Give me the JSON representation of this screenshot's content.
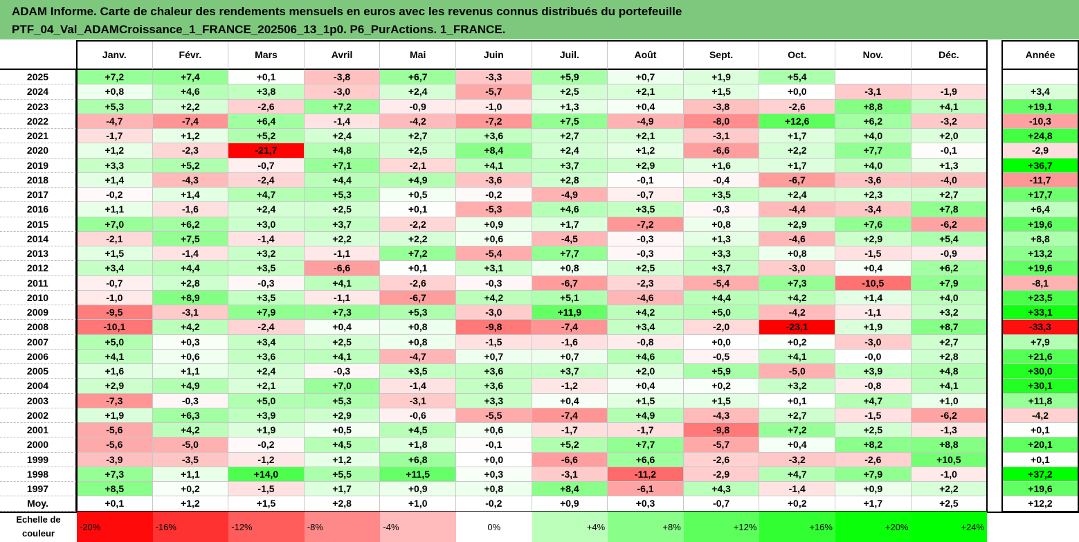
{
  "title": {
    "line1": "ADAM Informe. Carte de chaleur des rendements mensuels en euros avec les revenus connus distribués du portefeuille",
    "line2": "PTF_04_Val_ADAMCroissance_1_FRANCE_202506_13_1p0. P6_PurActions. 1_FRANCE."
  },
  "chart_data": {
    "type": "heatmap",
    "columns": [
      "Janv.",
      "Févr.",
      "Mars",
      "Avril",
      "Mai",
      "Juin",
      "Juil.",
      "Août",
      "Sept.",
      "Oct.",
      "Nov.",
      "Déc."
    ],
    "annual_header": "Année",
    "rows": [
      {
        "label": "2025",
        "values": [
          7.2,
          7.4,
          0.1,
          -3.8,
          6.7,
          -3.3,
          5.9,
          0.7,
          1.9,
          5.4,
          null,
          null
        ],
        "annual": null
      },
      {
        "label": "2024",
        "values": [
          0.8,
          4.6,
          3.8,
          -3.0,
          2.4,
          -5.7,
          2.5,
          2.1,
          1.5,
          0.0,
          -3.1,
          -1.9
        ],
        "annual": 3.4
      },
      {
        "label": "2023",
        "values": [
          5.3,
          2.2,
          -2.6,
          7.2,
          -0.9,
          -1.0,
          1.3,
          0.4,
          -3.8,
          -2.6,
          8.8,
          4.1
        ],
        "annual": 19.1
      },
      {
        "label": "2022",
        "values": [
          -4.7,
          -7.4,
          6.4,
          -1.4,
          -4.2,
          -7.2,
          7.5,
          -4.9,
          -8.0,
          12.6,
          6.2,
          -3.2
        ],
        "annual": -10.3
      },
      {
        "label": "2021",
        "values": [
          -1.7,
          1.2,
          5.2,
          2.4,
          2.7,
          3.6,
          2.7,
          2.1,
          -3.1,
          1.7,
          4.0,
          2.0
        ],
        "annual": 24.8
      },
      {
        "label": "2020",
        "values": [
          1.2,
          -2.3,
          -21.7,
          4.8,
          2.5,
          8.4,
          2.4,
          1.2,
          -6.6,
          2.2,
          7.7,
          -0.1
        ],
        "annual": -2.9
      },
      {
        "label": "2019",
        "values": [
          3.3,
          5.2,
          -0.7,
          7.1,
          -2.1,
          4.1,
          3.7,
          2.9,
          1.6,
          1.7,
          4.0,
          1.3
        ],
        "annual": 36.7
      },
      {
        "label": "2018",
        "values": [
          1.4,
          -4.3,
          -2.4,
          4.4,
          4.9,
          -3.6,
          2.8,
          -0.1,
          -0.4,
          -6.7,
          -3.6,
          -4.0
        ],
        "annual": -11.7
      },
      {
        "label": "2017",
        "values": [
          -0.2,
          1.4,
          4.7,
          5.3,
          0.5,
          -0.2,
          -4.9,
          -0.7,
          3.5,
          2.4,
          2.3,
          2.7
        ],
        "annual": 17.7
      },
      {
        "label": "2016",
        "values": [
          1.1,
          -1.6,
          2.4,
          2.5,
          0.1,
          -5.3,
          4.6,
          3.5,
          -0.3,
          -4.4,
          -3.4,
          7.8
        ],
        "annual": 6.4
      },
      {
        "label": "2015",
        "values": [
          7.0,
          6.2,
          3.0,
          3.7,
          -2.2,
          0.9,
          1.7,
          -7.2,
          0.8,
          2.9,
          7.6,
          -6.2
        ],
        "annual": 19.6
      },
      {
        "label": "2014",
        "values": [
          -2.1,
          7.5,
          -1.4,
          2.2,
          2.2,
          0.6,
          -4.5,
          -0.3,
          1.3,
          -4.6,
          2.9,
          5.4
        ],
        "annual": 8.8
      },
      {
        "label": "2013",
        "values": [
          1.5,
          -1.4,
          3.2,
          -1.1,
          7.2,
          -5.4,
          7.7,
          -0.3,
          3.3,
          0.8,
          -1.5,
          -0.9
        ],
        "annual": 13.2
      },
      {
        "label": "2012",
        "values": [
          3.4,
          4.4,
          3.5,
          -6.6,
          0.1,
          3.1,
          0.8,
          2.5,
          3.7,
          -3.0,
          0.4,
          6.2
        ],
        "annual": 19.6
      },
      {
        "label": "2011",
        "values": [
          -0.7,
          2.8,
          -0.3,
          4.1,
          -2.6,
          -0.3,
          -6.7,
          -2.3,
          -5.4,
          7.3,
          -10.5,
          7.9
        ],
        "annual": -8.1
      },
      {
        "label": "2010",
        "values": [
          -1.0,
          8.9,
          3.5,
          -1.1,
          -6.7,
          4.2,
          5.1,
          -4.6,
          4.4,
          4.2,
          1.4,
          4.0
        ],
        "annual": 23.5
      },
      {
        "label": "2009",
        "values": [
          -9.5,
          -3.1,
          7.9,
          7.3,
          5.3,
          -3.0,
          11.9,
          4.2,
          5.0,
          -4.2,
          -1.1,
          3.2
        ],
        "annual": 33.1
      },
      {
        "label": "2008",
        "values": [
          -10.1,
          4.2,
          -2.4,
          0.4,
          0.8,
          -9.8,
          -7.4,
          3.4,
          -2.0,
          -23.1,
          1.9,
          8.7
        ],
        "annual": -33.3
      },
      {
        "label": "2007",
        "values": [
          5.0,
          0.3,
          3.4,
          2.5,
          0.8,
          -1.5,
          -1.6,
          -0.8,
          0.0,
          0.2,
          -3.0,
          2.7
        ],
        "annual": 7.9
      },
      {
        "label": "2006",
        "values": [
          4.1,
          0.6,
          3.6,
          4.1,
          -4.7,
          0.7,
          0.7,
          4.6,
          -0.5,
          4.1,
          -0.0,
          2.8
        ],
        "annual": 21.6
      },
      {
        "label": "2005",
        "values": [
          1.6,
          1.1,
          2.4,
          -0.3,
          3.5,
          3.6,
          3.7,
          2.0,
          5.9,
          -5.0,
          3.9,
          4.8
        ],
        "annual": 30.0
      },
      {
        "label": "2004",
        "values": [
          2.9,
          4.9,
          2.1,
          7.0,
          -1.4,
          3.6,
          -1.2,
          0.4,
          0.2,
          3.2,
          -0.8,
          4.1
        ],
        "annual": 30.1
      },
      {
        "label": "2003",
        "values": [
          -7.3,
          -0.3,
          5.0,
          5.3,
          -3.1,
          3.3,
          0.4,
          1.5,
          1.5,
          0.1,
          4.7,
          1.0
        ],
        "annual": 11.8
      },
      {
        "label": "2002",
        "values": [
          1.9,
          6.3,
          3.9,
          2.9,
          -0.6,
          -5.5,
          -7.4,
          4.9,
          -4.3,
          2.7,
          -1.5,
          -6.2
        ],
        "annual": -4.2
      },
      {
        "label": "2001",
        "values": [
          -5.6,
          4.2,
          1.9,
          0.5,
          4.5,
          0.6,
          -1.7,
          -1.7,
          -9.8,
          7.2,
          2.5,
          -1.3
        ],
        "annual": 0.1
      },
      {
        "label": "2000",
        "values": [
          -5.6,
          -5.0,
          -0.2,
          4.5,
          1.8,
          -0.1,
          5.2,
          7.7,
          -5.7,
          0.4,
          8.2,
          8.8
        ],
        "annual": 20.1
      },
      {
        "label": "1999",
        "values": [
          -3.9,
          -3.5,
          -1.2,
          1.2,
          6.8,
          0.0,
          -6.6,
          6.6,
          -2.6,
          -3.2,
          -2.6,
          10.5
        ],
        "annual": 0.1
      },
      {
        "label": "1998",
        "values": [
          7.3,
          1.1,
          14.0,
          5.5,
          11.5,
          0.3,
          -3.1,
          -11.2,
          -2.9,
          4.7,
          7.9,
          -1.0
        ],
        "annual": 37.2
      },
      {
        "label": "1997",
        "values": [
          8.5,
          0.2,
          -1.5,
          1.7,
          0.9,
          0.8,
          8.4,
          -6.1,
          4.3,
          -1.4,
          0.9,
          2.2
        ],
        "annual": 19.6
      }
    ],
    "average": {
      "label": "Moy.",
      "values": [
        0.1,
        1.2,
        1.5,
        2.8,
        1.0,
        -0.2,
        0.9,
        0.3,
        -0.7,
        0.2,
        1.7,
        2.5
      ],
      "annual": 12.2
    },
    "legend": {
      "label": "Echelle de\ncouleur",
      "steps": [
        {
          "text": "-20%",
          "value": -20
        },
        {
          "text": "-16%",
          "value": -16
        },
        {
          "text": "-12%",
          "value": -12
        },
        {
          "text": "-8%",
          "value": -8
        },
        {
          "text": "-4%",
          "value": -4
        },
        {
          "text": "0%",
          "value": 0
        },
        {
          "text": "+4%",
          "value": 4
        },
        {
          "text": "+8%",
          "value": 8
        },
        {
          "text": "+12%",
          "value": 12
        },
        {
          "text": "+16%",
          "value": 16
        },
        {
          "text": "+20%",
          "value": 20
        },
        {
          "text": "+24%",
          "value": 24
        }
      ]
    },
    "colors": {
      "negative_max": "#ff0000",
      "neutral": "#ffffff",
      "positive_max": "#00ff00"
    }
  }
}
